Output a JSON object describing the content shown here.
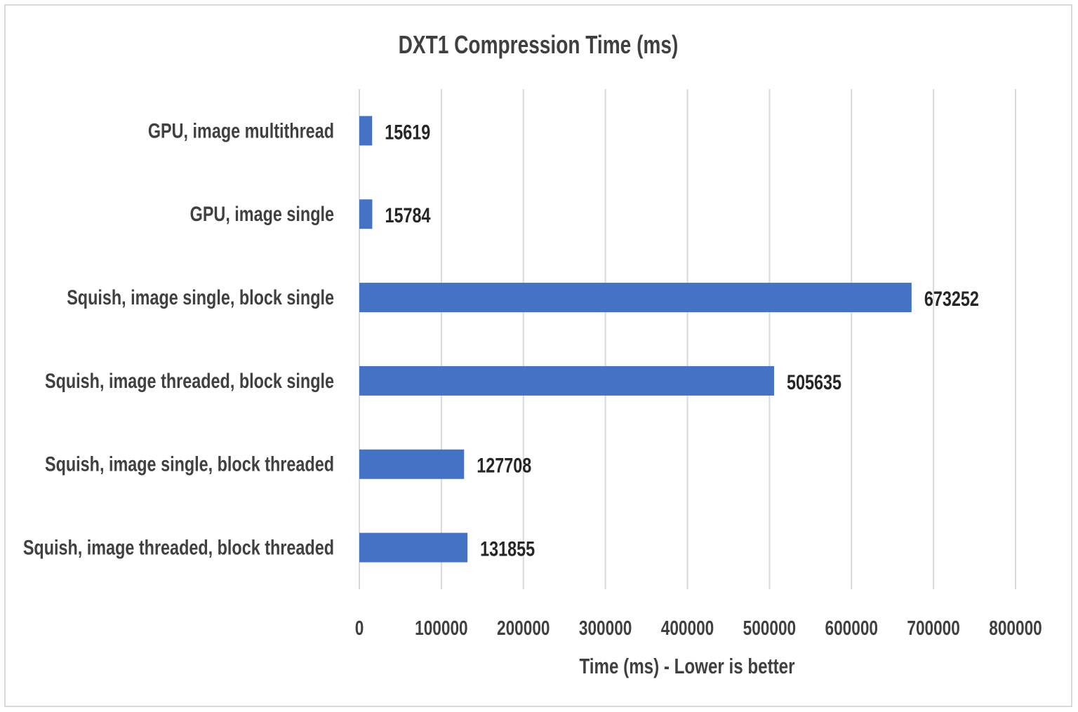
{
  "chart_data": {
    "type": "bar",
    "orientation": "horizontal",
    "title": "DXT1 Compression Time (ms)",
    "xlabel": "Time (ms) - Lower is better",
    "ylabel": "",
    "xlim": [
      0,
      800000
    ],
    "xticks": [
      0,
      100000,
      200000,
      300000,
      400000,
      500000,
      600000,
      700000,
      800000
    ],
    "xtick_labels": [
      "0",
      "100000",
      "200000",
      "300000",
      "400000",
      "500000",
      "600000",
      "700000",
      "800000"
    ],
    "grid": true,
    "categories": [
      "GPU, image multithread",
      "GPU, image single",
      "Squish, image single, block single",
      "Squish, image threaded, block single",
      "Squish, image single, block threaded",
      "Squish, image threaded, block threaded"
    ],
    "values": [
      15619,
      15784,
      673252,
      505635,
      127708,
      131855
    ],
    "data_labels": [
      "15619",
      "15784",
      "673252",
      "505635",
      "127708",
      "131855"
    ],
    "bar_color": "#4472C4",
    "legend": "none"
  }
}
